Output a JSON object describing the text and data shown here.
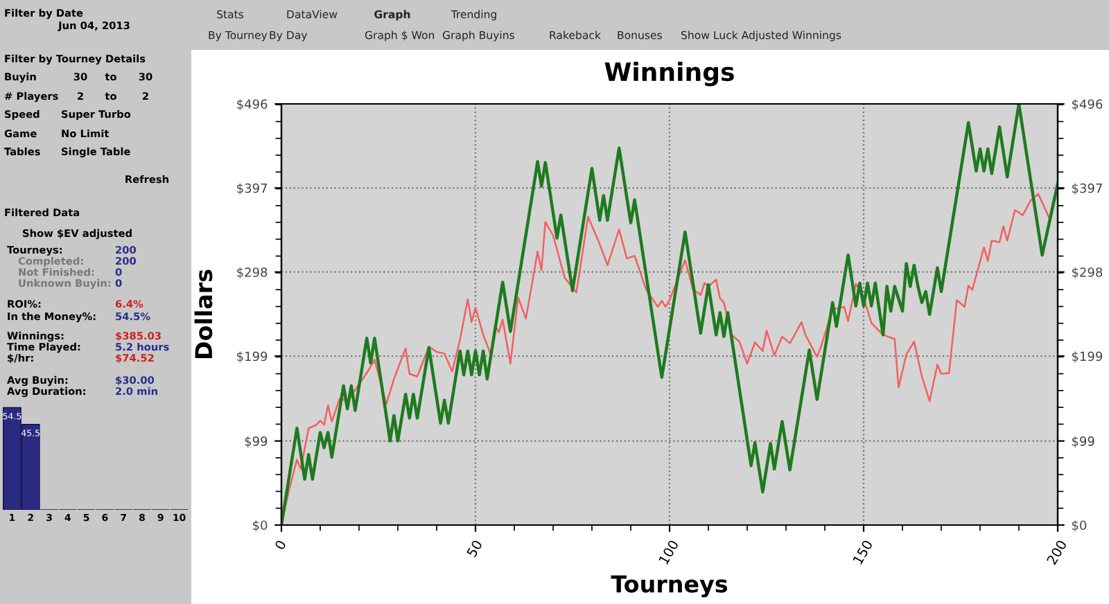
{
  "chart_data": [
    {
      "type": "other",
      "annotations": [
        "Filter by Date",
        "Jun 04, 2013",
        "Filter by Tourney Details",
        "Buyin",
        "30",
        "to",
        "30",
        "# Players",
        "2",
        "to",
        "2",
        "Speed",
        "Super Turbo",
        "Game",
        "No Limit",
        "Tables",
        "Single Table",
        "Refresh",
        "Filtered Data",
        "Show $EV adjusted",
        "Tourneys:",
        "200",
        "Completed:",
        "200",
        "Not Finished:",
        "0",
        "Unknown Buyin:",
        "0",
        "ROI%:",
        "6.4%",
        "In the Money%:",
        "54.5%",
        "Winnings:",
        "$385.03",
        "Time Played:",
        "5.2 hours",
        "$/hr:",
        "$74.52",
        "Avg Buyin:",
        "$30.00",
        "Avg Duration:",
        "2.0 min"
      ]
    },
    {
      "type": "bar",
      "categories": [
        "1",
        "2",
        "3",
        "4",
        "5",
        "6",
        "7",
        "8",
        "9",
        "10"
      ],
      "values": [
        54.5,
        45.5,
        0,
        0,
        0,
        0,
        0,
        0,
        0,
        0
      ],
      "value_labels": [
        "54.5",
        "45.5",
        null,
        null,
        null,
        null,
        null,
        null,
        null,
        null
      ],
      "color": "#2a2a80",
      "tick_labels": "x"
    },
    {
      "type": "other",
      "annotations": [
        "Stats",
        "DataView",
        "Graph",
        "Trending",
        "By Tourney",
        "By Day",
        "Graph $ Won",
        "Graph Buyins",
        "Rakeback",
        "Bonuses",
        "Show Luck Adjusted Winnings"
      ]
    },
    {
      "type": "line",
      "title": "Winnings",
      "xlabel": "Tourneys",
      "ylabel": "Dollars",
      "xlim": [
        0,
        200
      ],
      "xticks": [
        0,
        50,
        100,
        150,
        200
      ],
      "ylim": [
        0,
        496
      ],
      "yticks": [
        {
          "value": 0,
          "label": "$0"
        },
        {
          "value": 99,
          "label": "$99"
        },
        {
          "value": 199,
          "label": "$199"
        },
        {
          "value": 298,
          "label": "$298"
        },
        {
          "value": 397,
          "label": "$397"
        },
        {
          "value": 496,
          "label": "$496"
        }
      ],
      "y2lim": [
        0,
        496
      ],
      "y2ticks": [
        {
          "value": 0,
          "label": "$0"
        },
        {
          "value": 99,
          "label": "$99"
        },
        {
          "value": 199,
          "label": "$199"
        },
        {
          "value": 298,
          "label": "$298"
        },
        {
          "value": 397,
          "label": "$397"
        },
        {
          "value": 496,
          "label": "$496"
        }
      ],
      "grid": true,
      "line_style": "solid",
      "marker": "none",
      "series": [
        {
          "color": "#f26060",
          "x": [
            0,
            2,
            4,
            5,
            7,
            9,
            10,
            11,
            12,
            13,
            15,
            17,
            22,
            24,
            27,
            29,
            32,
            33,
            35,
            38,
            40,
            42,
            44,
            46,
            48,
            49,
            50,
            52,
            54,
            55,
            56,
            57,
            59,
            61,
            63,
            66,
            67,
            68,
            70,
            73,
            76,
            79,
            82,
            84,
            87,
            89,
            91,
            94,
            97,
            98,
            99,
            100,
            104,
            106,
            108,
            109,
            110,
            112,
            113,
            114,
            116,
            118,
            120,
            122,
            124,
            125,
            127,
            129,
            131,
            134,
            135,
            138,
            139,
            142,
            145,
            146,
            148,
            150,
            152,
            155,
            158,
            159,
            161,
            163,
            165,
            167,
            169,
            170,
            172,
            174,
            176,
            177,
            178,
            181,
            182,
            183,
            185,
            186,
            187,
            189,
            191,
            193,
            195,
            198,
            200
          ],
          "values": [
            0,
            42,
            77,
            66,
            114,
            118,
            123,
            118,
            141,
            122,
            149,
            146,
            179,
            195,
            142,
            172,
            208,
            178,
            175,
            210,
            204,
            202,
            181,
            218,
            266,
            239,
            256,
            224,
            200,
            235,
            227,
            242,
            190,
            268,
            243,
            322,
            300,
            357,
            341,
            291,
            274,
            363,
            331,
            306,
            348,
            314,
            317,
            277,
            257,
            264,
            257,
            265,
            312,
            278,
            271,
            285,
            281,
            289,
            267,
            262,
            224,
            216,
            190,
            215,
            205,
            229,
            200,
            222,
            214,
            239,
            224,
            198,
            210,
            254,
            257,
            240,
            284,
            268,
            238,
            224,
            219,
            162,
            201,
            216,
            175,
            146,
            189,
            178,
            179,
            265,
            257,
            282,
            277,
            327,
            311,
            335,
            333,
            352,
            335,
            371,
            365,
            382,
            390,
            360,
            398
          ]
        },
        {
          "color": "#1e7a1e",
          "x": [
            0,
            4,
            6,
            7,
            8,
            10,
            11,
            12,
            13,
            16,
            17,
            18,
            19,
            22,
            23,
            24,
            28,
            29,
            30,
            32,
            33,
            34,
            35,
            38,
            41,
            42,
            43,
            46,
            47,
            48,
            49,
            50,
            51,
            52,
            53,
            57,
            59,
            66,
            67,
            68,
            71,
            72,
            75,
            80,
            82,
            83,
            84,
            87,
            90,
            91,
            98,
            104,
            108,
            110,
            112,
            113,
            114,
            115,
            121,
            122,
            124,
            126,
            127,
            129,
            131,
            136,
            138,
            142,
            143,
            146,
            148,
            149,
            150,
            151,
            152,
            153,
            155,
            156,
            157,
            158,
            160,
            161,
            162,
            163,
            164,
            165,
            166,
            167,
            169,
            170,
            177,
            179,
            180,
            181,
            182,
            183,
            185,
            187,
            190,
            196,
            200
          ],
          "values": [
            0,
            114,
            54,
            83,
            54,
            109,
            91,
            109,
            80,
            164,
            137,
            164,
            135,
            220,
            191,
            220,
            99,
            129,
            99,
            154,
            126,
            154,
            126,
            209,
            120,
            147,
            120,
            205,
            177,
            205,
            177,
            205,
            177,
            205,
            172,
            286,
            228,
            428,
            399,
            427,
            338,
            365,
            276,
            420,
            359,
            388,
            359,
            444,
            356,
            383,
            174,
            345,
            226,
            283,
            224,
            250,
            222,
            250,
            70,
            97,
            39,
            96,
            66,
            122,
            65,
            206,
            148,
            262,
            234,
            318,
            258,
            285,
            258,
            285,
            258,
            285,
            224,
            281,
            252,
            281,
            252,
            308,
            281,
            306,
            281,
            262,
            275,
            248,
            303,
            275,
            474,
            417,
            443,
            417,
            443,
            414,
            469,
            410,
            496,
            318,
            402
          ]
        }
      ]
    }
  ]
}
